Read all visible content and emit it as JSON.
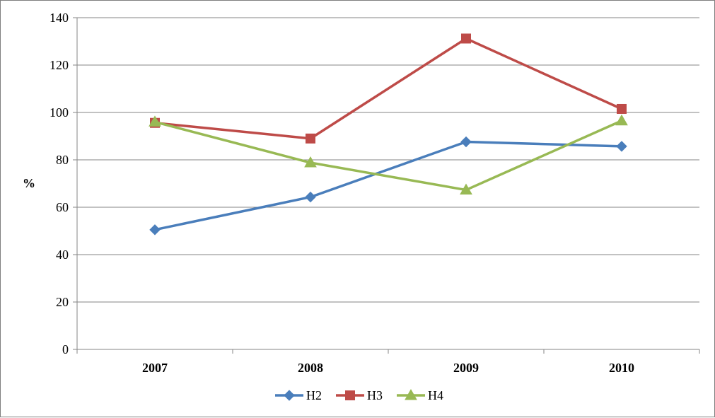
{
  "chart_data": {
    "type": "line",
    "title": "",
    "xlabel": "",
    "ylabel": "%",
    "ylim": [
      0,
      140
    ],
    "yticks": [
      0,
      20,
      40,
      60,
      80,
      100,
      120,
      140
    ],
    "grid": true,
    "legend": "bottom",
    "categories": [
      "2007",
      "2008",
      "2009",
      "2010"
    ],
    "series": [
      {
        "name": "H2",
        "color": "#4a7ebb",
        "marker": "diamond",
        "values": [
          50.5,
          64.3,
          87.6,
          85.7
        ]
      },
      {
        "name": "H3",
        "color": "#be4b48",
        "marker": "square",
        "values": [
          95.6,
          89.0,
          131.2,
          101.5
        ]
      },
      {
        "name": "H4",
        "color": "#98b954",
        "marker": "triangle",
        "values": [
          96.0,
          78.8,
          67.3,
          96.5
        ]
      }
    ]
  }
}
